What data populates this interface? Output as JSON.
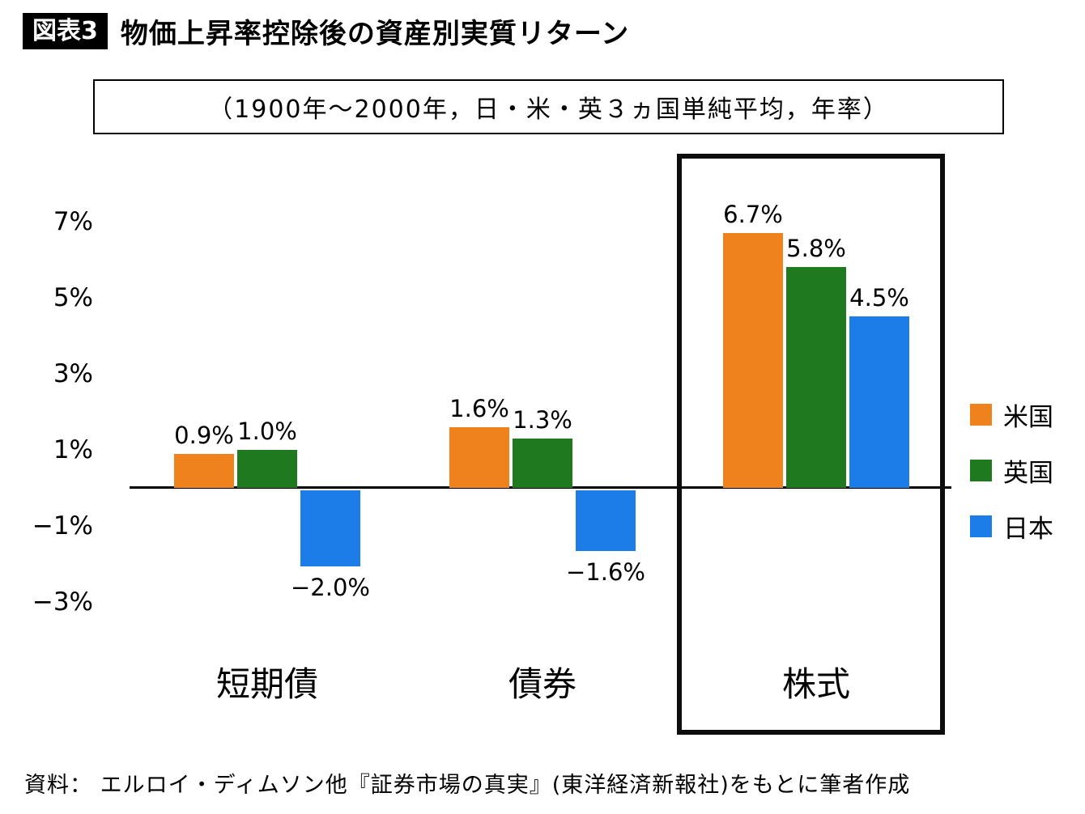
{
  "header": {
    "badge": "図表3",
    "title": "物価上昇率控除後の資産別実質リターン"
  },
  "subtitle": "（1900年〜2000年，日・米・英３ヵ国単純平均，年率）",
  "source": "資料： エルロイ・ディムソン他『証券市場の真実』(東洋経済新報社)をもとに筆者作成",
  "chart_data": {
    "type": "bar",
    "title": "物価上昇率控除後の資産別実質リターン",
    "subtitle": "（1900年〜2000年，日・米・英３ヵ国単純平均，年率）",
    "categories": [
      "短期債",
      "債券",
      "株式"
    ],
    "series": [
      {
        "name": "米国",
        "color": "#F0821E",
        "values": [
          0.9,
          1.6,
          6.7
        ],
        "labels": [
          "0.9%",
          "1.6%",
          "6.7%"
        ]
      },
      {
        "name": "英国",
        "color": "#1F7A1F",
        "values": [
          1.0,
          1.3,
          5.8
        ],
        "labels": [
          "1.0%",
          "1.3%",
          "5.8%"
        ]
      },
      {
        "name": "日本",
        "color": "#1C7CE8",
        "values": [
          -2.0,
          -1.6,
          4.5
        ],
        "labels": [
          "−2.0%",
          "−1.6%",
          "4.5%"
        ]
      }
    ],
    "yticks": [
      {
        "value": 7,
        "label": "7%"
      },
      {
        "value": 5,
        "label": "5%"
      },
      {
        "value": 3,
        "label": "3%"
      },
      {
        "value": 1,
        "label": "1%"
      },
      {
        "value": -1,
        "label": "−1%"
      },
      {
        "value": -3,
        "label": "−3%"
      }
    ],
    "ylim": [
      -3.5,
      7.5
    ],
    "grid": false,
    "legend_position": "right",
    "highlighted_category": "株式",
    "xlabel": "",
    "ylabel": ""
  }
}
